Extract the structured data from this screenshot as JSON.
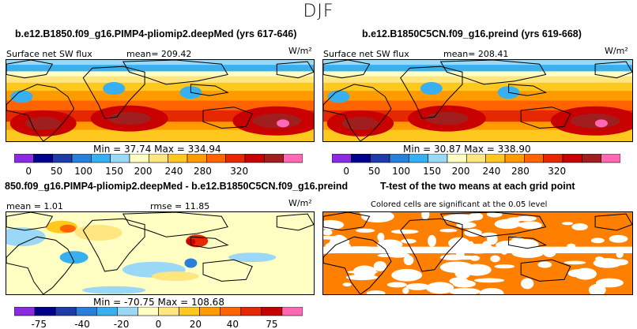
{
  "page_title": "DJF",
  "panels": [
    {
      "title": "b.e12.B1850.f09_g16.PIMP4-pliomip2.deepMed (yrs 617-646)",
      "variable": "Surface net SW flux",
      "mean_label": "mean= 209.42",
      "units": "W/m²",
      "minmax": "Min =  37.74 Max = 334.94"
    },
    {
      "title": "b.e12.B1850C5CN.f09_g16.preind (yrs 619-668)",
      "variable": "Surface net SW flux",
      "mean_label": "mean= 208.41",
      "units": "W/m²",
      "minmax": "Min =  30.87 Max = 338.90"
    },
    {
      "title": "850.f09_g16.PIMP4-pliomip2.deepMed - b.e12.B1850C5CN.f09_g16.preind",
      "mean_label": "mean =  1.01",
      "rmse_label": "rmse =  11.85",
      "units": "W/m²",
      "minmax": "Min = -70.75 Max = 108.68"
    },
    {
      "title": "T-test of the two means at each grid point",
      "subtitle": "Colored cells are significant at the 0.05 level"
    }
  ],
  "chart_data": [
    {
      "type": "heatmap",
      "title": "b.e12.B1850.f09_g16.PIMP4-pliomip2.deepMed (yrs 617-646)",
      "variable": "Surface net SW flux",
      "units": "W/m²",
      "mean": 209.42,
      "min": 37.74,
      "max": 334.94,
      "colorbar_levels": [
        0,
        50,
        100,
        150,
        200,
        240,
        280,
        320
      ],
      "colorbar_colors": [
        "#8a2be2",
        "#00008b",
        "#1e3ca8",
        "#2a7fd8",
        "#38b0f0",
        "#9ad8f6",
        "#ffffc4",
        "#ffe680",
        "#ffc81e",
        "#ff9a00",
        "#ff6400",
        "#e62800",
        "#c80000",
        "#a01e1e",
        "#ff69b4"
      ]
    },
    {
      "type": "heatmap",
      "title": "b.e12.B1850C5CN.f09_g16.preind (yrs 619-668)",
      "variable": "Surface net SW flux",
      "units": "W/m²",
      "mean": 208.41,
      "min": 30.87,
      "max": 338.9,
      "colorbar_levels": [
        0,
        50,
        100,
        150,
        200,
        240,
        280,
        320
      ],
      "colorbar_colors": [
        "#8a2be2",
        "#00008b",
        "#1e3ca8",
        "#2a7fd8",
        "#38b0f0",
        "#9ad8f6",
        "#ffffc4",
        "#ffe680",
        "#ffc81e",
        "#ff9a00",
        "#ff6400",
        "#e62800",
        "#c80000",
        "#a01e1e",
        "#ff69b4"
      ]
    },
    {
      "type": "heatmap",
      "title": "850.f09_g16.PIMP4-pliomip2.deepMed - b.e12.B1850C5CN.f09_g16.preind",
      "units": "W/m²",
      "mean": 1.01,
      "rmse": 11.85,
      "min": -70.75,
      "max": 108.68,
      "colorbar_levels": [
        -75,
        -40,
        -20,
        0,
        20,
        40,
        75
      ],
      "colorbar_colors": [
        "#8a2be2",
        "#00008b",
        "#1e3ca8",
        "#2a7fd8",
        "#38b0f0",
        "#9ad8f6",
        "#ffffc4",
        "#ffe680",
        "#ffc81e",
        "#ff9a00",
        "#ff6400",
        "#e62800",
        "#c80000",
        "#ff69b4"
      ]
    },
    {
      "type": "heatmap",
      "title": "T-test of the two means at each grid point",
      "subtitle": "Colored cells are significant at the 0.05 level",
      "significance_level": 0.05,
      "significant_color": "#ff8000"
    }
  ]
}
